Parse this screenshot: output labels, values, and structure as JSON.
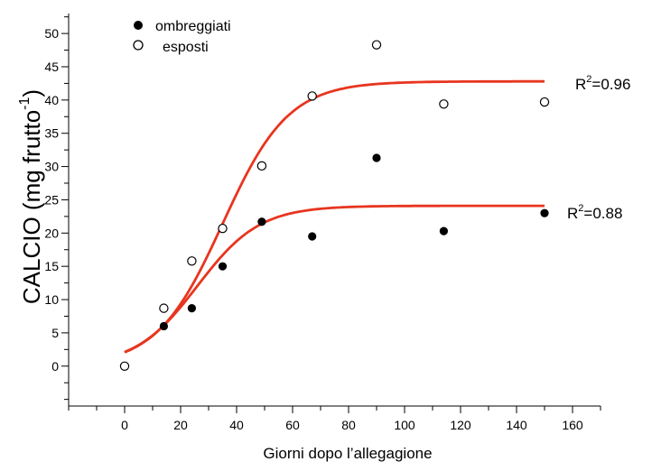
{
  "chart_data": {
    "type": "scatter",
    "title": "",
    "xlabel": "Giorni dopo l’allegagione",
    "ylabel_main": "CALCIO (mg frutto",
    "ylabel_sup": "-1",
    "ylabel_close": ")",
    "xlim": [
      -20,
      170
    ],
    "ylim": [
      -6,
      53
    ],
    "x_ticks": [
      0,
      20,
      40,
      60,
      80,
      100,
      120,
      140,
      160
    ],
    "y_ticks": [
      0,
      5,
      10,
      15,
      20,
      25,
      30,
      35,
      40,
      45,
      50
    ],
    "grid": false,
    "legend_position": "top-left",
    "series": [
      {
        "name": "ombreggiati",
        "marker": "filled-circle",
        "x": [
          0,
          14,
          24,
          35,
          49,
          67,
          90,
          114,
          150
        ],
        "y": [
          0,
          6,
          8.7,
          15,
          21.7,
          19.5,
          31.3,
          20.3,
          23
        ]
      },
      {
        "name": "esposti",
        "marker": "open-circle",
        "x": [
          0,
          14,
          24,
          35,
          49,
          67,
          90,
          114,
          150
        ],
        "y": [
          0,
          8.7,
          15.8,
          20.7,
          30.1,
          40.6,
          48.3,
          39.4,
          39.7
        ]
      }
    ],
    "fits": [
      {
        "series": "esposti",
        "r2_label": "R",
        "r2_sup": "2",
        "r2_value": "=0.96",
        "asymptote": 42.8,
        "k": 0.085,
        "x0": 35,
        "color": "#e8351f"
      },
      {
        "series": "ombreggiati",
        "r2_label": "R",
        "r2_sup": "2",
        "r2_value": "=0.88",
        "asymptote": 24.1,
        "k": 0.09,
        "x0": 26,
        "color": "#e8351f"
      }
    ]
  }
}
